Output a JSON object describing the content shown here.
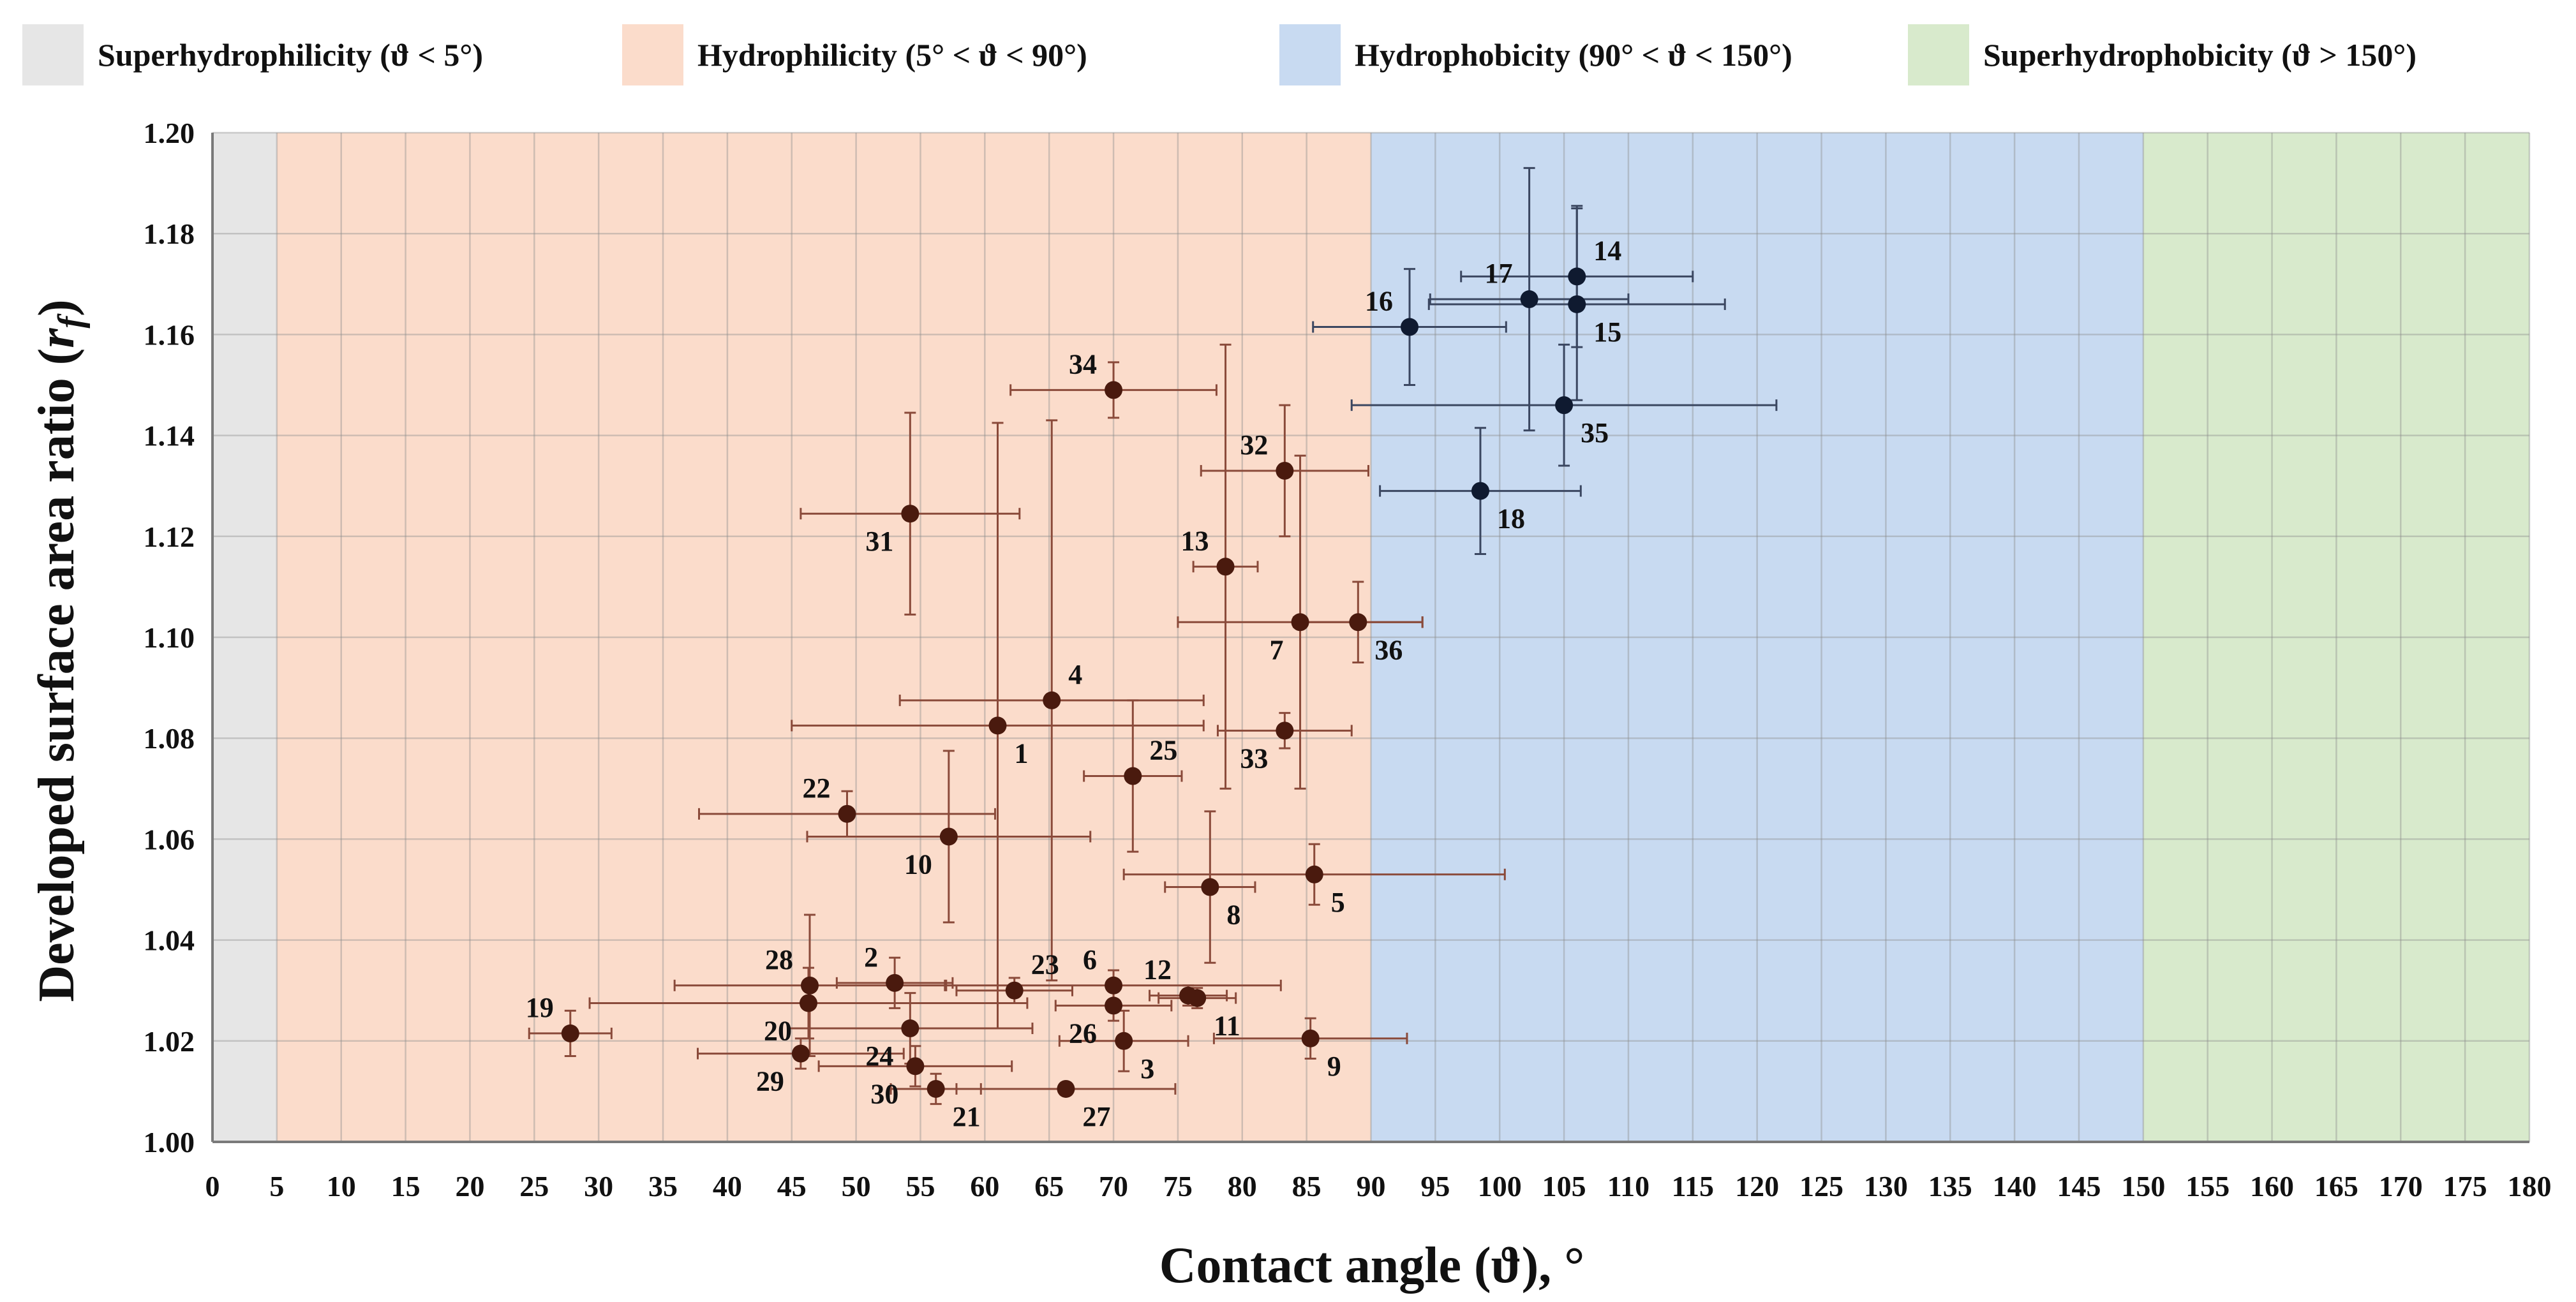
{
  "chart_data": {
    "type": "scatter",
    "title": "",
    "xlabel": "Contact angle (ϑ), °",
    "ylabel_main": "Developed surface area ratio (",
    "ylabel_var": "r",
    "ylabel_sub": "f",
    "ylabel_close": ")",
    "xlim": [
      0,
      180
    ],
    "ylim": [
      1.0,
      1.2
    ],
    "x_tick_step": 5,
    "y_tick_step": 0.02,
    "grid": true,
    "regions": [
      {
        "label": "Superhydrophilicity (ϑ < 5°)",
        "from": 0,
        "to": 5,
        "color": "#e6e6e6"
      },
      {
        "label": "Hydrophilicity (5° < ϑ < 90°)",
        "from": 5,
        "to": 90,
        "color": "#fbdccb"
      },
      {
        "label": "Hydrophobicity (90° < ϑ < 150°)",
        "from": 90,
        "to": 150,
        "color": "#c8daf1"
      },
      {
        "label": "Superhydrophobicity (ϑ > 150°)",
        "from": 150,
        "to": 180,
        "color": "#d8eacc"
      }
    ],
    "hydrophilic_point_color": "#4a1a0e",
    "hydrophobic_point_color": "#0f1a30",
    "hydrophilic_error_color": "#8a4a3a",
    "hydrophobic_error_color": "#3a4660",
    "points": [
      {
        "id": "1",
        "x": 61.0,
        "y": 1.0825,
        "xerr": 16.0,
        "yerr": 0.06,
        "label_pos": "br"
      },
      {
        "id": "2",
        "x": 53.0,
        "y": 1.0315,
        "xerr": 4.5,
        "yerr": 0.005,
        "label_pos": "tl"
      },
      {
        "id": "3",
        "x": 70.8,
        "y": 1.02,
        "xerr": 5.0,
        "yerr": 0.006,
        "label_pos": "br"
      },
      {
        "id": "4",
        "x": 65.2,
        "y": 1.0875,
        "xerr": 11.8,
        "yerr": 0.0555,
        "label_pos": "tr"
      },
      {
        "id": "5",
        "x": 85.6,
        "y": 1.053,
        "xerr": 14.8,
        "yerr": 0.006,
        "label_pos": "br"
      },
      {
        "id": "6",
        "x": 70.0,
        "y": 1.031,
        "xerr": 13.0,
        "yerr": 0.003,
        "label_pos": "tl"
      },
      {
        "id": "7",
        "x": 84.5,
        "y": 1.103,
        "xerr": 9.5,
        "yerr": 0.033,
        "label_pos": "bl"
      },
      {
        "id": "8",
        "x": 77.5,
        "y": 1.0505,
        "xerr": 3.5,
        "yerr": 0.015,
        "label_pos": "br"
      },
      {
        "id": "9",
        "x": 85.3,
        "y": 1.0205,
        "xerr": 7.5,
        "yerr": 0.004,
        "label_pos": "br"
      },
      {
        "id": "10",
        "x": 57.2,
        "y": 1.0605,
        "xerr": 11.0,
        "yerr": 0.017,
        "label_pos": "bl"
      },
      {
        "id": "11",
        "x": 76.5,
        "y": 1.0285,
        "xerr": 3.0,
        "yerr": 0.002,
        "label_pos": "br"
      },
      {
        "id": "12",
        "x": 75.8,
        "y": 1.029,
        "xerr": 3.0,
        "yerr": 0.002,
        "label_pos": "tl"
      },
      {
        "id": "13",
        "x": 78.7,
        "y": 1.114,
        "xerr": 2.5,
        "yerr": 0.044,
        "label_pos": "tl"
      },
      {
        "id": "14",
        "x": 106.0,
        "y": 1.1715,
        "xerr": 9.0,
        "yerr": 0.014,
        "label_pos": "tr"
      },
      {
        "id": "15",
        "x": 106.0,
        "y": 1.166,
        "xerr": 11.5,
        "yerr": 0.019,
        "label_pos": "br"
      },
      {
        "id": "16",
        "x": 93.0,
        "y": 1.1615,
        "xerr": 7.5,
        "yerr": 0.0115,
        "label_pos": "tl"
      },
      {
        "id": "17",
        "x": 102.3,
        "y": 1.167,
        "xerr": 7.7,
        "yerr": 0.026,
        "label_pos": "tl"
      },
      {
        "id": "18",
        "x": 98.5,
        "y": 1.129,
        "xerr": 7.8,
        "yerr": 0.0125,
        "label_pos": "br"
      },
      {
        "id": "19",
        "x": 27.8,
        "y": 1.0215,
        "xerr": 3.2,
        "yerr": 0.0045,
        "label_pos": "tl"
      },
      {
        "id": "20",
        "x": 46.3,
        "y": 1.0275,
        "xerr": 17.0,
        "yerr": 0.007,
        "label_pos": "bl"
      },
      {
        "id": "21",
        "x": 56.2,
        "y": 1.0105,
        "xerr": 3.5,
        "yerr": 0.003,
        "label_pos": "br"
      },
      {
        "id": "22",
        "x": 49.3,
        "y": 1.065,
        "xerr": 11.5,
        "yerr": 0.0045,
        "label_pos": "tl"
      },
      {
        "id": "23",
        "x": 62.3,
        "y": 1.03,
        "xerr": 4.5,
        "yerr": 0.0025,
        "label_pos": "tr"
      },
      {
        "id": "24",
        "x": 54.2,
        "y": 1.0225,
        "xerr": 9.5,
        "yerr": 0.007,
        "label_pos": "bl"
      },
      {
        "id": "25",
        "x": 71.5,
        "y": 1.0725,
        "xerr": 3.8,
        "yerr": 0.015,
        "label_pos": "tr"
      },
      {
        "id": "26",
        "x": 70.0,
        "y": 1.027,
        "xerr": 4.5,
        "yerr": 0.003,
        "label_pos": "bl"
      },
      {
        "id": "27",
        "x": 66.3,
        "y": 1.0105,
        "xerr": 8.5,
        "yerr": 0.001,
        "label_pos": "br"
      },
      {
        "id": "28",
        "x": 46.4,
        "y": 1.031,
        "xerr": 10.5,
        "yerr": 0.014,
        "label_pos": "tl"
      },
      {
        "id": "29",
        "x": 45.7,
        "y": 1.0175,
        "xerr": 8.0,
        "yerr": 0.003,
        "label_pos": "bl"
      },
      {
        "id": "30",
        "x": 54.6,
        "y": 1.015,
        "xerr": 7.5,
        "yerr": 0.004,
        "label_pos": "bl"
      },
      {
        "id": "31",
        "x": 54.2,
        "y": 1.1245,
        "xerr": 8.5,
        "yerr": 0.02,
        "label_pos": "bl"
      },
      {
        "id": "32",
        "x": 83.3,
        "y": 1.133,
        "xerr": 6.5,
        "yerr": 0.013,
        "label_pos": "tl"
      },
      {
        "id": "33",
        "x": 83.3,
        "y": 1.0815,
        "xerr": 5.2,
        "yerr": 0.0035,
        "label_pos": "bl"
      },
      {
        "id": "34",
        "x": 70.0,
        "y": 1.149,
        "xerr": 8.0,
        "yerr": 0.0055,
        "label_pos": "tl"
      },
      {
        "id": "35",
        "x": 105.0,
        "y": 1.146,
        "xerr": 16.5,
        "yerr": 0.012,
        "label_pos": "br"
      },
      {
        "id": "36",
        "x": 89.0,
        "y": 1.103,
        "xerr": 5.0,
        "yerr": 0.008,
        "label_pos": "br"
      }
    ]
  }
}
